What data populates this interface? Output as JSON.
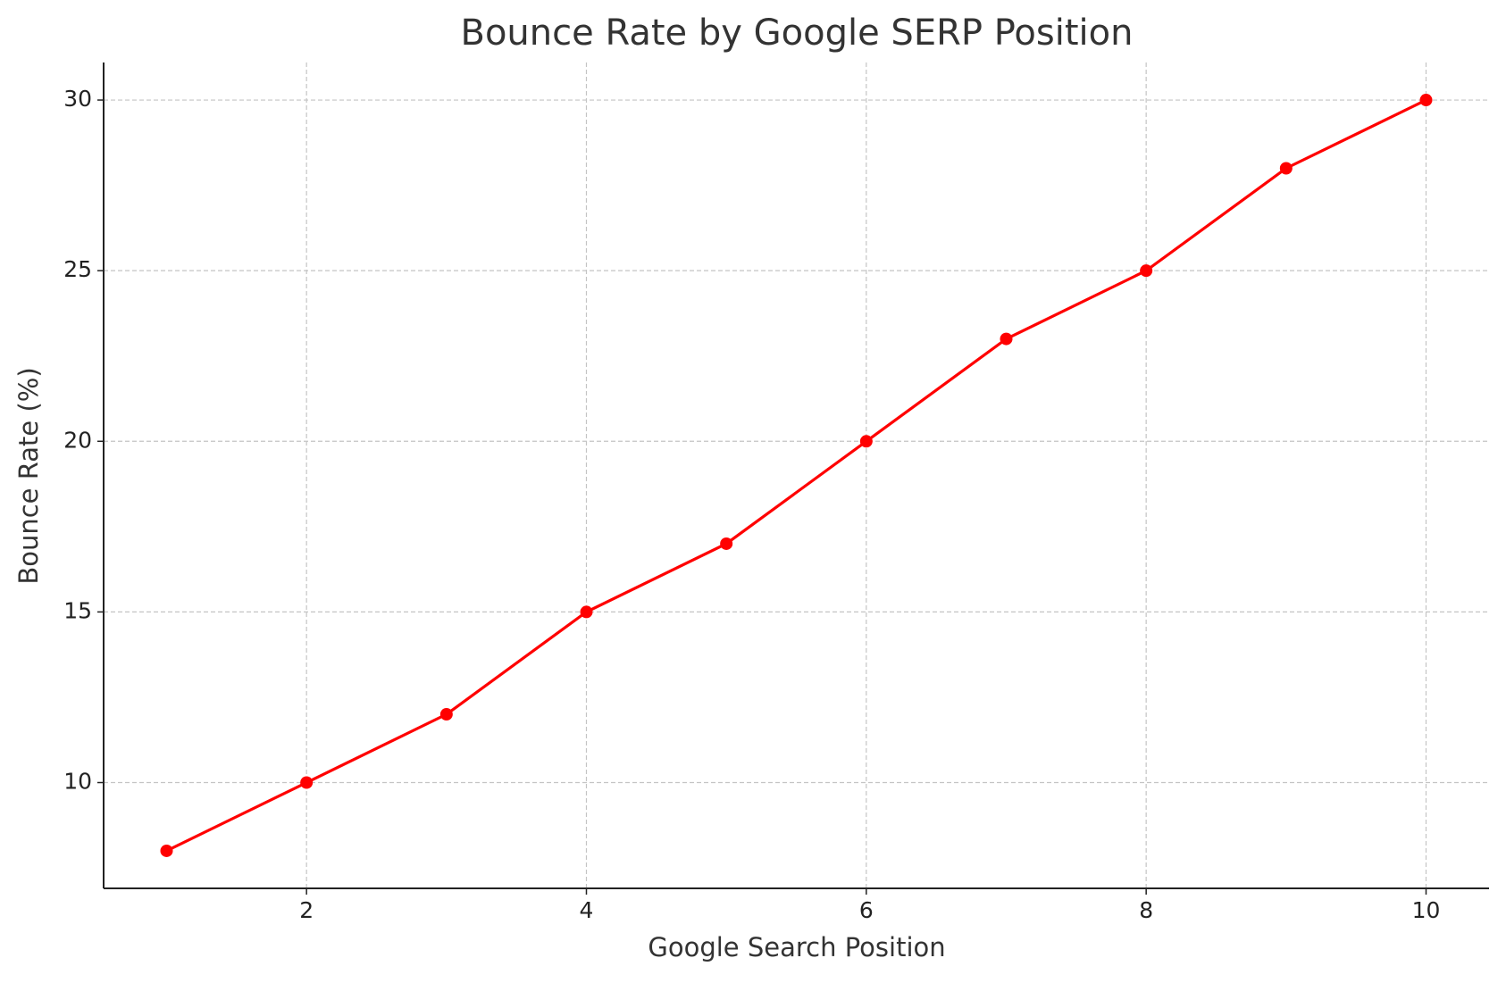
{
  "chart_data": {
    "type": "line",
    "title": "Bounce Rate by Google SERP Position",
    "x_label": "Google Search Position",
    "y_label": "Bounce Rate (%)",
    "x": [
      1,
      2,
      3,
      4,
      5,
      6,
      7,
      8,
      9,
      10
    ],
    "series": [
      {
        "name": "Bounce Rate",
        "color": "#ff0000",
        "values": [
          8,
          10,
          12,
          15,
          17,
          20,
          23,
          25,
          28,
          30
        ]
      }
    ],
    "xlim": [
      0.55,
      10.45
    ],
    "ylim": [
      6.9,
      31.1
    ],
    "xticks": [
      2,
      4,
      6,
      8,
      10
    ],
    "yticks": [
      10,
      15,
      20,
      25,
      30
    ],
    "grid": true
  }
}
